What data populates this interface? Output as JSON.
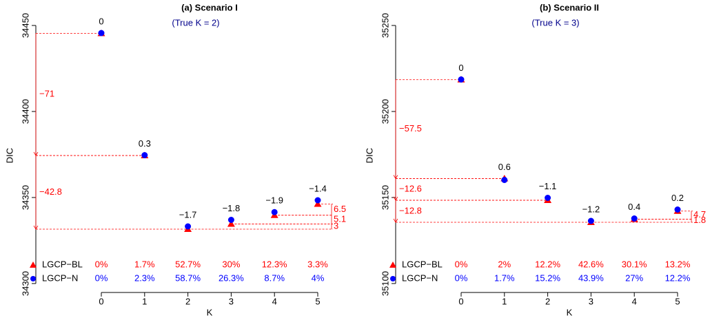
{
  "chart_data": [
    {
      "type": "scatter",
      "title": "(a) Scenario I",
      "subtitle": "(True K = 2)",
      "x_label": "K",
      "y_label": "DIC",
      "x": [
        0,
        1,
        2,
        3,
        4,
        5
      ],
      "xlim": [
        0,
        5
      ],
      "xticks": [
        0,
        1,
        2,
        3,
        4,
        5
      ],
      "ylim": [
        34300,
        34450
      ],
      "yticks": [
        34300,
        34350,
        34400,
        34450
      ],
      "series": [
        {
          "name": "LGCP−BL",
          "color": "#ff0000",
          "marker": "triangle",
          "values": [
            34445.4,
            34374.4,
            34331.6,
            34334.6,
            34339.7,
            34346.2
          ],
          "shares": [
            "0%",
            "1.7%",
            "52.7%",
            "30%",
            "12.3%",
            "3.3%"
          ]
        },
        {
          "name": "LGCP−N",
          "color": "#0000ff",
          "marker": "circle",
          "values": [
            34445.6,
            34374.6,
            34333.2,
            34337,
            34341.5,
            34348.4
          ],
          "shares": [
            "0%",
            "2.3%",
            "58.7%",
            "26.3%",
            "8.7%",
            "4%"
          ]
        }
      ],
      "point_labels": [
        "0",
        "0.3",
        "−1.7",
        "−1.8",
        "−1.9",
        "−1.4"
      ],
      "left_gaps": [
        "−71",
        "−42.8"
      ],
      "right_gaps": [
        "6.5",
        "5.1",
        "3"
      ]
    },
    {
      "type": "scatter",
      "title": "(b) Scenario II",
      "subtitle": "(True K = 3)",
      "x_label": "K",
      "y_label": "DIC",
      "x": [
        0,
        1,
        2,
        3,
        4,
        5
      ],
      "xlim": [
        0,
        5
      ],
      "xticks": [
        0,
        1,
        2,
        3,
        4,
        5
      ],
      "ylim": [
        35100,
        35250
      ],
      "yticks": [
        35100,
        35150,
        35200,
        35250
      ],
      "series": [
        {
          "name": "LGCP−BL",
          "color": "#ff0000",
          "marker": "triangle",
          "values": [
            35218.5,
            35161.0,
            35148.4,
            35135.6,
            35137.4,
            35142.1
          ],
          "shares": [
            "0%",
            "2%",
            "12.2%",
            "42.6%",
            "30.1%",
            "13.2%"
          ]
        },
        {
          "name": "LGCP−N",
          "color": "#0000ff",
          "marker": "circle",
          "values": [
            35218.6,
            35160.2,
            35149.8,
            35136.4,
            35137.8,
            35143
          ],
          "shares": [
            "0%",
            "1.7%",
            "15.2%",
            "43.9%",
            "27%",
            "12.2%"
          ]
        }
      ],
      "point_labels": [
        "0",
        "0.6",
        "−1.1",
        "−1.2",
        "0.4",
        "0.2"
      ],
      "left_gaps": [
        "−57.5",
        "−12.6",
        "−12.8"
      ],
      "right_gaps": [
        "4.7",
        "1.8"
      ]
    }
  ]
}
